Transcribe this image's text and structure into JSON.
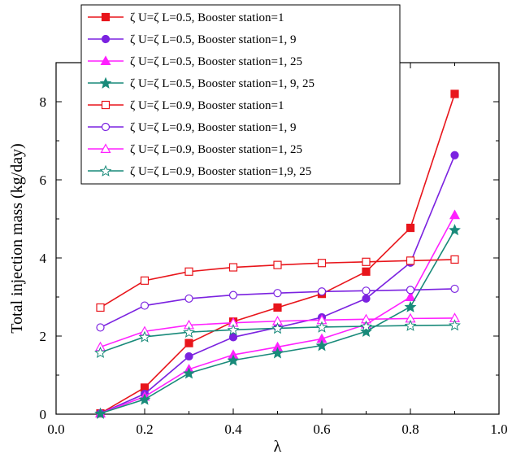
{
  "chart_data": {
    "type": "line",
    "xlabel": "λ",
    "ylabel": "Total injection mass (kg/day)",
    "xlim": [
      0.0,
      1.0
    ],
    "ylim": [
      0,
      9
    ],
    "xticks": [
      "0.0",
      "0.2",
      "0.4",
      "0.6",
      "0.8",
      "1.0"
    ],
    "yticks": [
      "0",
      "2",
      "4",
      "6",
      "8"
    ],
    "legend_position": "top-left",
    "grid": false,
    "x": [
      0.1,
      0.2,
      0.3,
      0.4,
      0.5,
      0.6,
      0.7,
      0.8,
      0.9
    ],
    "series": [
      {
        "name": "ζ U=ζ L=0.5, Booster station=1",
        "color": "#e8151b",
        "marker": "square",
        "filled": true,
        "values": [
          0.02,
          0.68,
          1.82,
          2.37,
          2.73,
          3.08,
          3.65,
          4.77,
          8.2
        ]
      },
      {
        "name": "ζ U=ζ L=0.5, Booster station=1, 9",
        "color": "#7b22e0",
        "marker": "circle",
        "filled": true,
        "values": [
          0.02,
          0.52,
          1.48,
          1.97,
          2.22,
          2.48,
          2.96,
          3.88,
          6.63
        ]
      },
      {
        "name": "ζ U=ζ L=0.5, Booster station=1, 25",
        "color": "#ff21ff",
        "marker": "triangle",
        "filled": true,
        "values": [
          0.02,
          0.45,
          1.15,
          1.52,
          1.72,
          1.93,
          2.3,
          3.0,
          5.1
        ]
      },
      {
        "name": "ζ U=ζ L=0.5, Booster station=1, 9, 25",
        "color": "#198a7a",
        "marker": "star",
        "filled": true,
        "values": [
          0.02,
          0.38,
          1.05,
          1.38,
          1.57,
          1.76,
          2.12,
          2.75,
          4.72
        ]
      },
      {
        "name": "ζ U=ζ L=0.9, Booster station=1",
        "color": "#e8151b",
        "marker": "square",
        "filled": false,
        "values": [
          2.73,
          3.42,
          3.65,
          3.76,
          3.82,
          3.87,
          3.9,
          3.93,
          3.96
        ]
      },
      {
        "name": "ζ U=ζ L=0.9, Booster station=1, 9",
        "color": "#7b22e0",
        "marker": "circle",
        "filled": false,
        "values": [
          2.22,
          2.78,
          2.96,
          3.05,
          3.1,
          3.14,
          3.16,
          3.18,
          3.21
        ]
      },
      {
        "name": "ζ U=ζ L=0.9, Booster station=1, 25",
        "color": "#ff21ff",
        "marker": "triangle",
        "filled": false,
        "values": [
          1.72,
          2.12,
          2.28,
          2.34,
          2.38,
          2.41,
          2.43,
          2.45,
          2.46
        ]
      },
      {
        "name": "ζ U=ζ L=0.9, Booster station=1,9, 25",
        "color": "#198a7a",
        "marker": "star",
        "filled": false,
        "values": [
          1.58,
          1.98,
          2.1,
          2.16,
          2.2,
          2.23,
          2.25,
          2.27,
          2.28
        ]
      }
    ]
  }
}
